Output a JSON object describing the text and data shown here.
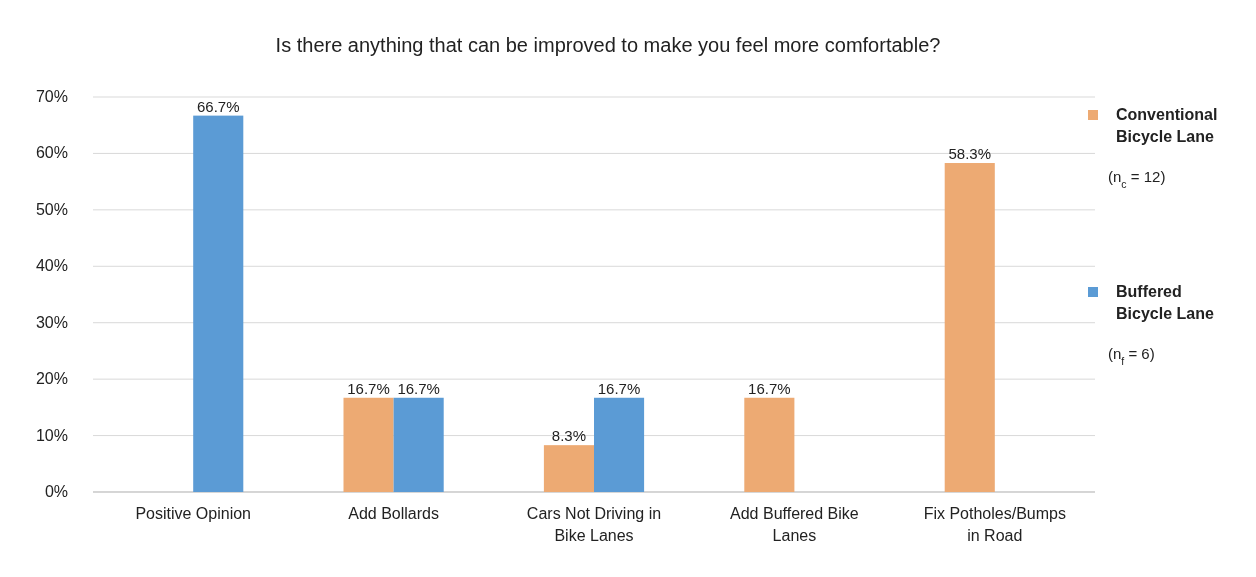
{
  "chart_data": {
    "type": "bar",
    "title": "Is there anything that can be improved to make you feel more comfortable?",
    "categories": [
      "Positive Opinion",
      "Add Bollards",
      "Cars Not Driving in Bike Lanes",
      "Add Buffered Bike Lanes",
      "Fix Potholes/Bumps in Road"
    ],
    "series": [
      {
        "name": "Conventional Bicycle Lane",
        "color": "#edaa73",
        "values": [
          null,
          16.7,
          8.3,
          16.7,
          58.3
        ],
        "value_labels": [
          null,
          "16.7%",
          "8.3%",
          "16.7%",
          "58.3%"
        ]
      },
      {
        "name": "Buffered Bicycle Lane",
        "color": "#5b9bd5",
        "values": [
          66.7,
          16.7,
          16.7,
          null,
          null
        ],
        "value_labels": [
          "66.7%",
          "16.7%",
          "16.7%",
          null,
          null
        ]
      }
    ],
    "annotations": [
      "(n$_{c}$ = 12)",
      "(n$_{f}$ = 6)"
    ],
    "ylim": [
      0,
      70
    ],
    "yticks": [
      {
        "value": 0,
        "label": "0%"
      },
      {
        "value": 10,
        "label": "10%"
      },
      {
        "value": 20,
        "label": "20%"
      },
      {
        "value": 30,
        "label": "30%"
      },
      {
        "value": 40,
        "label": "40%"
      },
      {
        "value": 50,
        "label": "50%"
      },
      {
        "value": 60,
        "label": "60%"
      },
      {
        "value": 70,
        "label": "70%"
      }
    ],
    "grid": "y",
    "legend": "right"
  }
}
